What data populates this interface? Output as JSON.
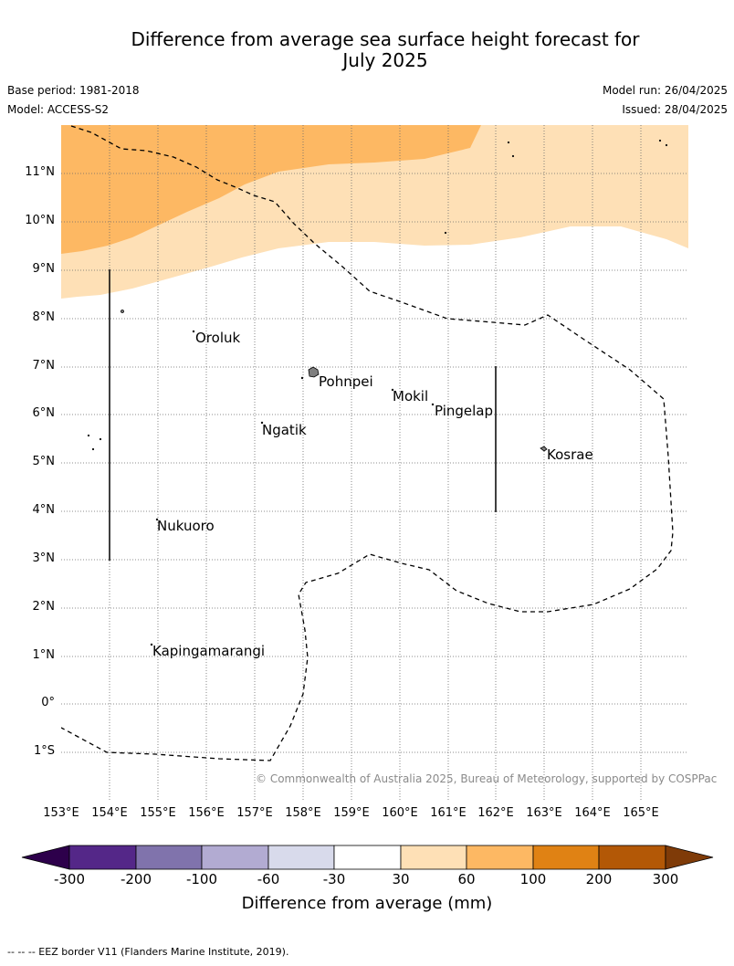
{
  "header": {
    "title_line1": "Difference from average sea surface height forecast for",
    "title_line2": "July 2025",
    "base_period": "Base period: 1981-2018",
    "model": "Model: ACCESS-S2",
    "model_run": "Model run: 26/04/2025",
    "issued": "Issued: 28/04/2025"
  },
  "map": {
    "lat_labels": [
      "11°N",
      "10°N",
      "9°N",
      "8°N",
      "7°N",
      "6°N",
      "5°N",
      "4°N",
      "3°N",
      "2°N",
      "1°N",
      "0°",
      "1°S"
    ],
    "lon_labels": [
      "153°E",
      "154°E",
      "155°E",
      "156°E",
      "157°E",
      "158°E",
      "159°E",
      "160°E",
      "161°E",
      "162°E",
      "163°E",
      "164°E",
      "165°E"
    ],
    "places": [
      "Oroluk",
      "Pohnpei",
      "Mokil",
      "Pingelap",
      "Ngatik",
      "Kosrae",
      "Nukuoro",
      "Kapingamarangi"
    ],
    "copyright": "© Commonwealth of Australia 2025, Bureau of Meteorology, supported by COSPPac",
    "colors": {
      "band_60_100": "#fdb863",
      "band_30_60": "#fee0b6",
      "land": "#7f7f7f"
    }
  },
  "colorbar": {
    "title": "Difference from average (mm)",
    "ticks": [
      "-300",
      "-200",
      "-100",
      "-60",
      "-30",
      "30",
      "60",
      "100",
      "200",
      "300"
    ],
    "colors": [
      "#2d004b",
      "#542788",
      "#8073ac",
      "#b2abd2",
      "#d8daeb",
      "#ffffff",
      "#fee0b6",
      "#fdb863",
      "#e08214",
      "#b35806",
      "#7f3b08"
    ]
  },
  "footnote": "--  --  -- EEZ border V11 (Flanders Marine Institute, 2019)."
}
